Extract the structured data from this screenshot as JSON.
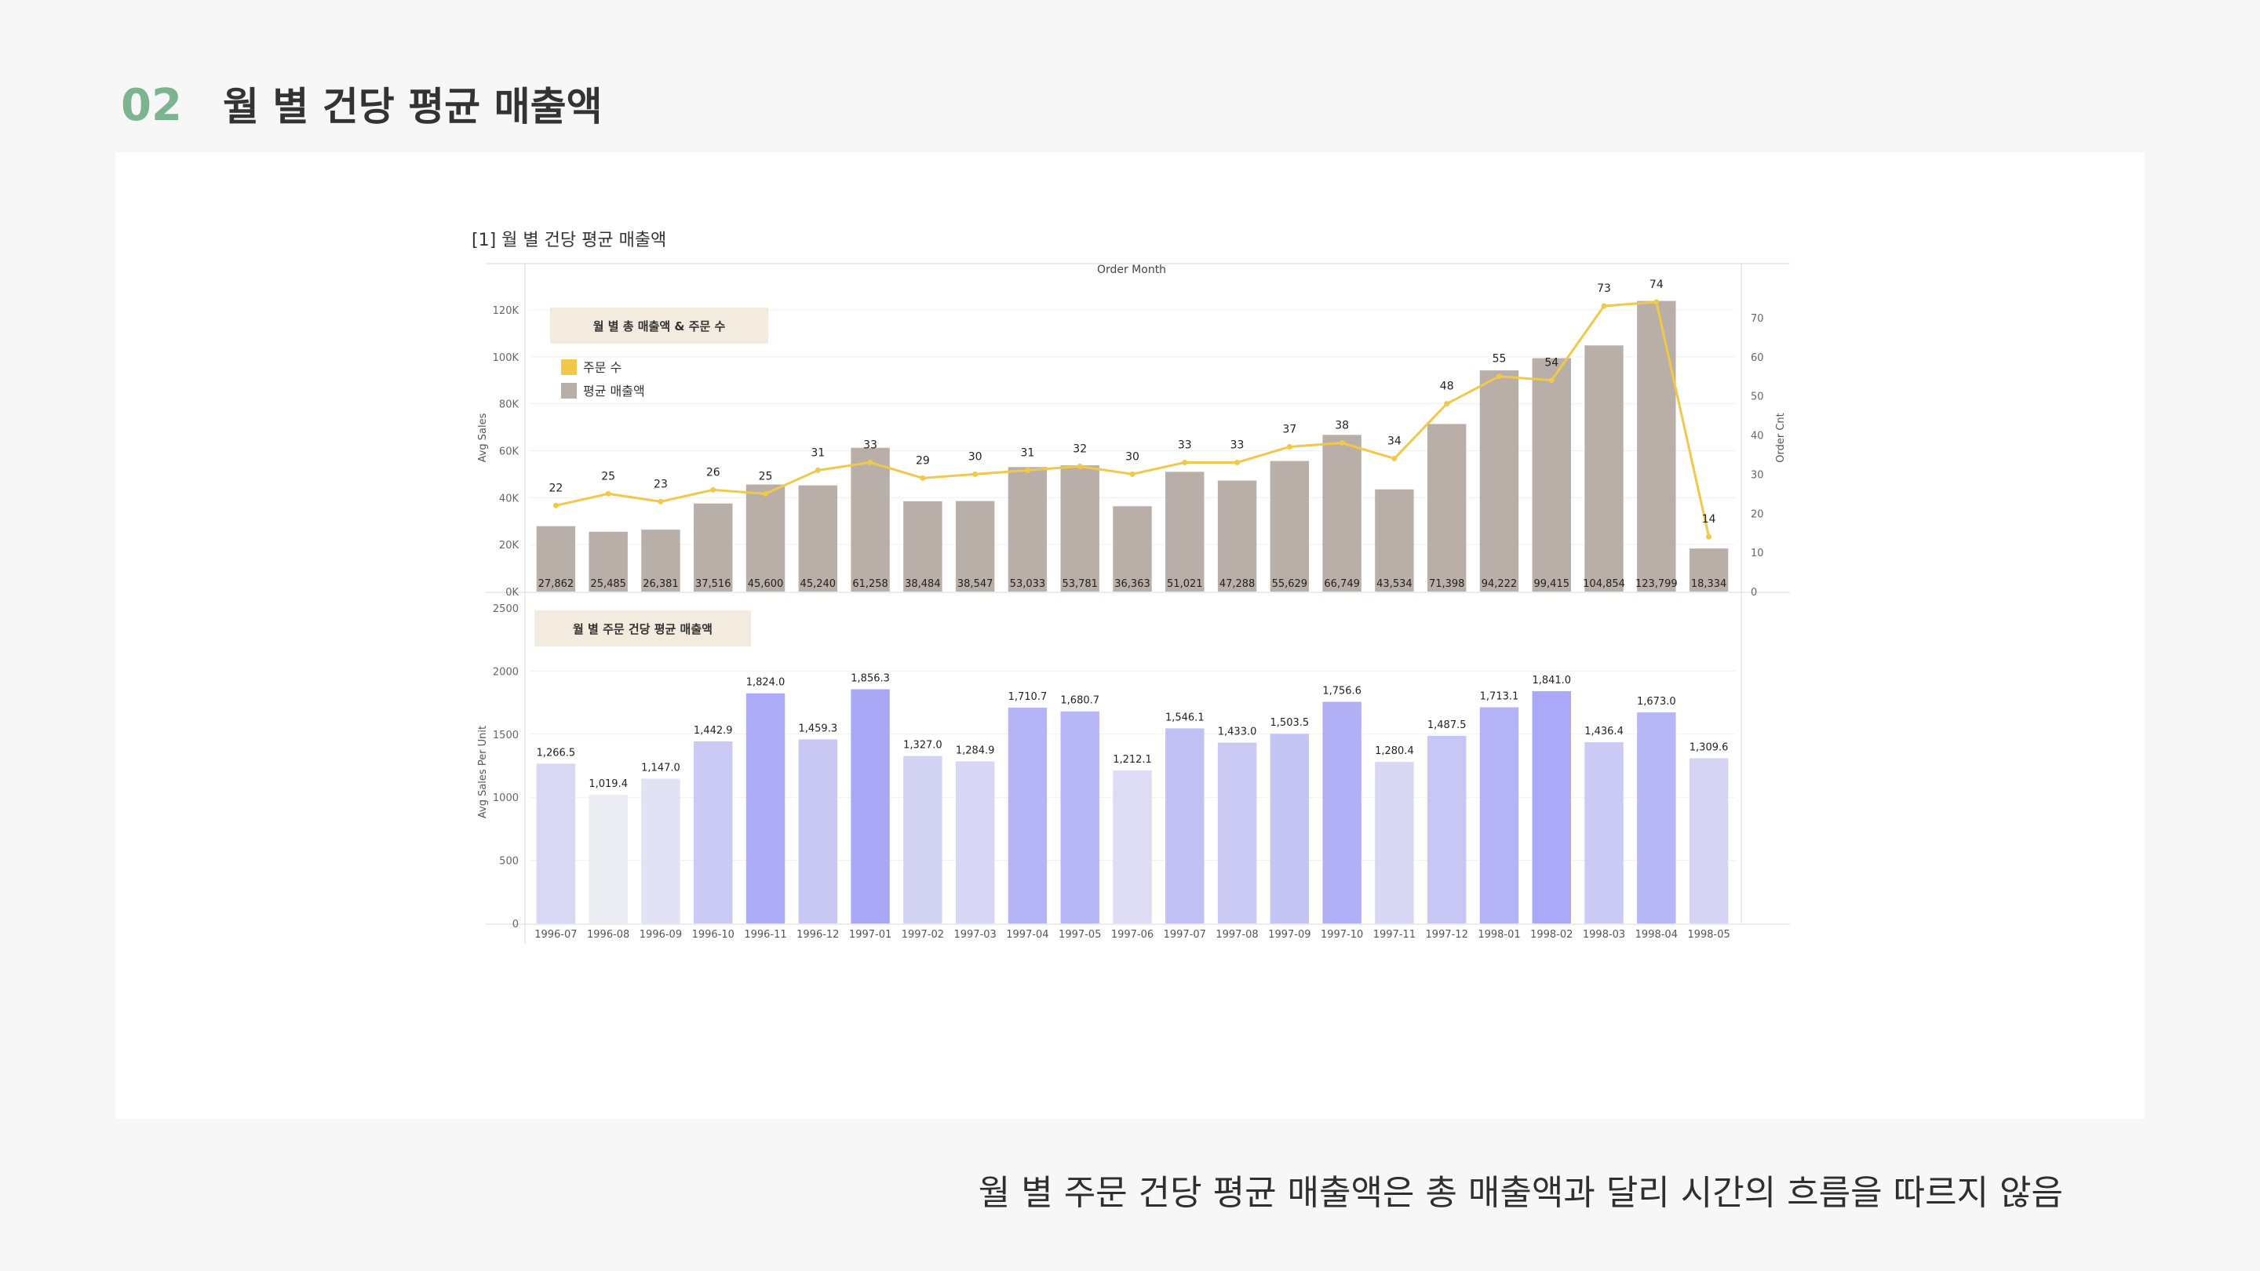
{
  "section": {
    "number": "02",
    "title": "월 별 건당 평균 매출액"
  },
  "caption": "월 별 주문 건당 평균 매출액은 총 매출액과 달리 시간의 흐름을 따르지 않음",
  "colors": {
    "section_number": "#7bb48e",
    "bar_sales": "#b9afa8",
    "line_orders": "#f0c84a",
    "legend_box_bg": "#f3ebdd",
    "bar_per_unit_low": "#ececf3",
    "bar_per_unit_high": "#a9a8f7"
  },
  "chart_data": [
    {
      "type": "bar+line",
      "title": "[1] 월 별 건당 평균 매출액",
      "top_axis_label": "Order Month",
      "legend_title": "월 별 총 매출액 & 주문 수",
      "legend": [
        {
          "name": "주문 수",
          "color": "#f0c84a"
        },
        {
          "name": "평균 매출액",
          "color": "#b9afa8"
        }
      ],
      "y_left_label": "Avg Sales",
      "y_left_ticks": [
        "0K",
        "20K",
        "40K",
        "60K",
        "80K",
        "100K",
        "120K"
      ],
      "y_left_lim": [
        0,
        125000
      ],
      "y_right_label": "Order Cnt",
      "y_right_ticks": [
        "0",
        "10",
        "20",
        "30",
        "40",
        "50",
        "60",
        "70"
      ],
      "y_right_lim": [
        0,
        75
      ],
      "categories": [
        "1996-07",
        "1996-08",
        "1996-09",
        "1996-10",
        "1996-11",
        "1996-12",
        "1997-01",
        "1997-02",
        "1997-03",
        "1997-04",
        "1997-05",
        "1997-06",
        "1997-07",
        "1997-08",
        "1997-09",
        "1997-10",
        "1997-11",
        "1997-12",
        "1998-01",
        "1998-02",
        "1998-03",
        "1998-04",
        "1998-05"
      ],
      "series": [
        {
          "name": "평균 매출액",
          "values": [
            27862,
            25485,
            26381,
            37516,
            45600,
            45240,
            61258,
            38484,
            38547,
            53033,
            53781,
            36363,
            51021,
            47288,
            55629,
            66749,
            43534,
            71398,
            94222,
            99415,
            104854,
            123799,
            18334
          ],
          "labels": [
            "27,862",
            "25,485",
            "26,381",
            "37,516",
            "45,600",
            "45,240",
            "61,258",
            "38,484",
            "38,547",
            "53,033",
            "53,781",
            "36,363",
            "51,021",
            "47,288",
            "55,629",
            "66,749",
            "43,534",
            "71,398",
            "94,222",
            "99,415",
            "104,854",
            "123,799",
            "18,334"
          ]
        },
        {
          "name": "주문 수",
          "values": [
            22,
            25,
            23,
            26,
            25,
            31,
            33,
            29,
            30,
            31,
            32,
            30,
            33,
            33,
            37,
            38,
            34,
            48,
            55,
            54,
            73,
            74,
            14
          ]
        }
      ]
    },
    {
      "type": "bar",
      "legend_title": "월 별 주문 건당 평균 매출액",
      "y_label": "Avg Sales Per Unit",
      "y_ticks": [
        "0",
        "500",
        "1000",
        "1500",
        "2000",
        "2500"
      ],
      "ylim": [
        0,
        2500
      ],
      "categories": [
        "1996-07",
        "1996-08",
        "1996-09",
        "1996-10",
        "1996-11",
        "1996-12",
        "1997-01",
        "1997-02",
        "1997-03",
        "1997-04",
        "1997-05",
        "1997-06",
        "1997-07",
        "1997-08",
        "1997-09",
        "1997-10",
        "1997-11",
        "1997-12",
        "1998-01",
        "1998-02",
        "1998-03",
        "1998-04",
        "1998-05"
      ],
      "values": [
        1266.5,
        1019.4,
        1147.0,
        1442.9,
        1824.0,
        1459.3,
        1856.3,
        1327.0,
        1284.9,
        1710.7,
        1680.7,
        1212.1,
        1546.1,
        1433.0,
        1503.5,
        1756.6,
        1280.4,
        1487.5,
        1713.1,
        1841.0,
        1436.4,
        1673.0,
        1309.6
      ],
      "labels": [
        "1,266.5",
        "1,019.4",
        "1,147.0",
        "1,442.9",
        "1,824.0",
        "1,459.3",
        "1,856.3",
        "1,327.0",
        "1,284.9",
        "1,710.7",
        "1,680.7",
        "1,212.1",
        "1,546.1",
        "1,433.0",
        "1,503.5",
        "1,756.6",
        "1,280.4",
        "1,487.5",
        "1,713.1",
        "1,841.0",
        "1,436.4",
        "1,673.0",
        "1,309.6"
      ]
    }
  ]
}
